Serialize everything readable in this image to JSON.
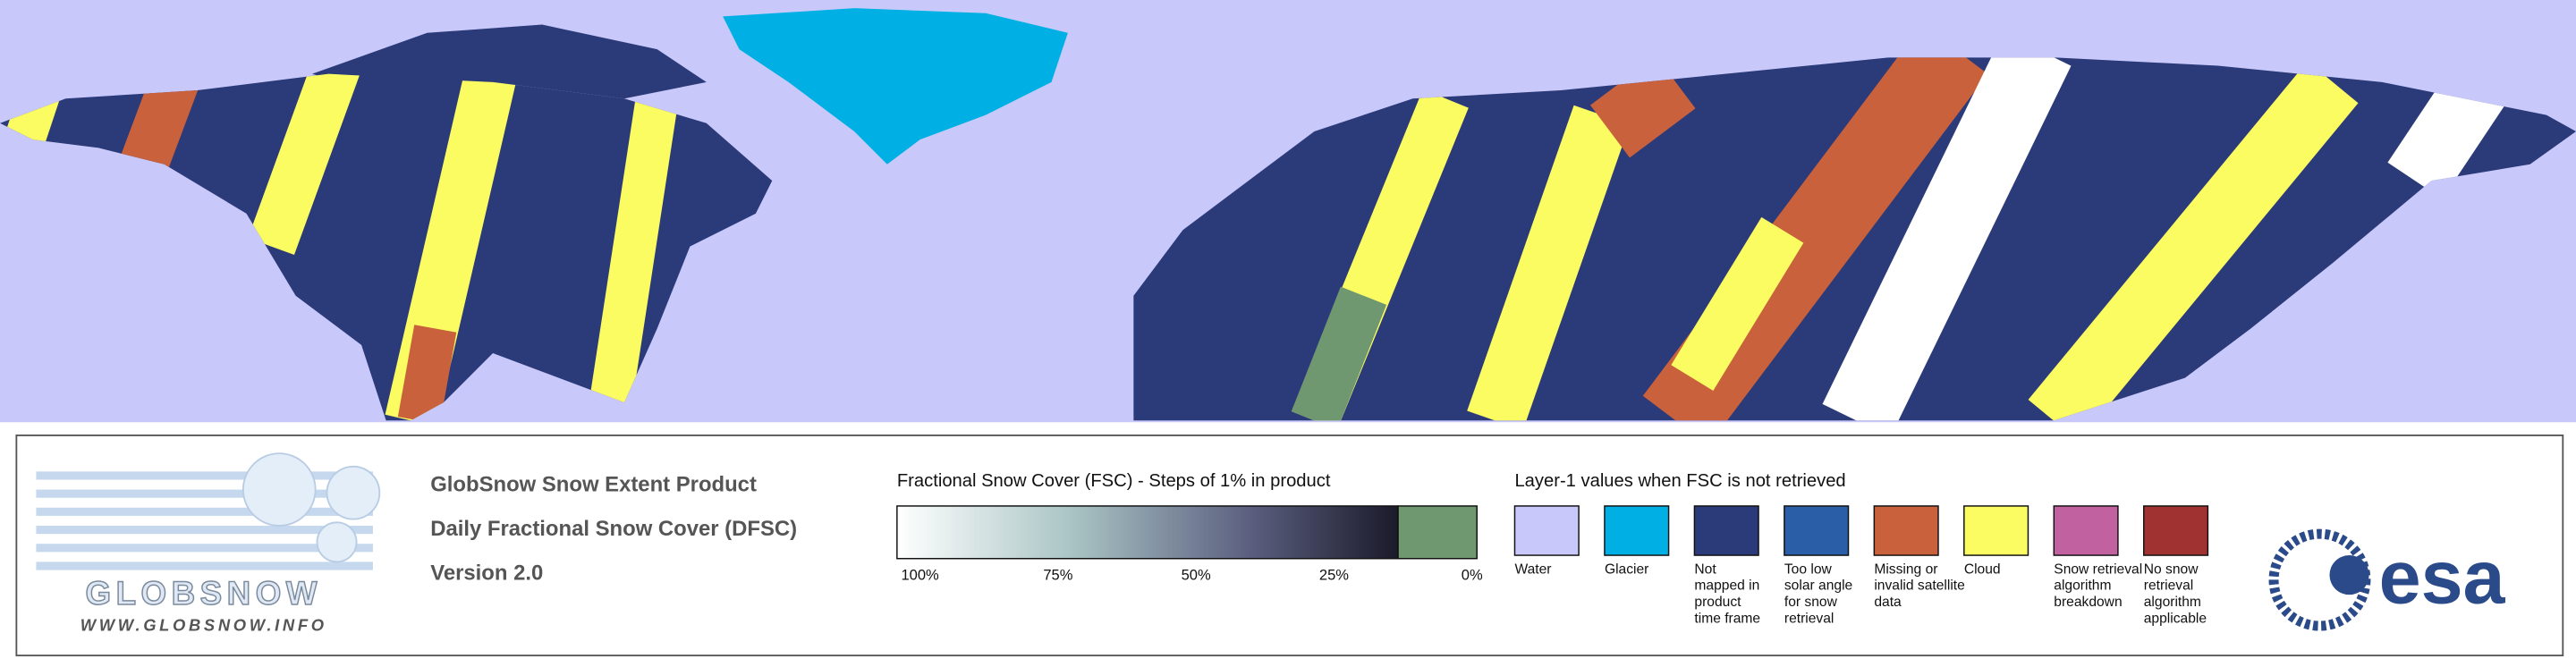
{
  "logo": {
    "name": "GLOBSNOW",
    "url": "WWW.GLOBSNOW.INFO"
  },
  "product": {
    "lines": [
      "GlobSnow Snow Extent Product",
      "Daily Fractional Snow Cover (DFSC)",
      "Version 2.0"
    ]
  },
  "fsc_legend": {
    "title": "Fractional Snow Cover (FSC) - Steps of 1% in product",
    "ticks": [
      "100%",
      "75%",
      "50%",
      "25%",
      "0%"
    ]
  },
  "layer1_legend": {
    "title": "Layer-1 values when FSC is not retrieved",
    "items": [
      {
        "color": "#c8c8fa",
        "lines": [
          "Water"
        ]
      },
      {
        "color": "#00b0e4",
        "lines": [
          "Glacier"
        ]
      },
      {
        "color": "#2b3a78",
        "lines": [
          "Not",
          "mapped in",
          "product",
          "time frame"
        ]
      },
      {
        "color": "#2a5fa8",
        "lines": [
          "Too low",
          "solar angle",
          "for snow",
          "retrieval"
        ]
      },
      {
        "color": "#c9623c",
        "lines": [
          "Missing or",
          "invalid satellite",
          "data"
        ]
      },
      {
        "color": "#fbfb62",
        "lines": [
          "Cloud"
        ]
      },
      {
        "color": "#c261a0",
        "lines": [
          "Snow retrieval",
          "algorithm",
          "breakdown"
        ]
      },
      {
        "color": "#a03232",
        "lines": [
          "No snow",
          "retrieval",
          "algorithm",
          "applicable"
        ]
      }
    ]
  },
  "esa_logo": "esa"
}
